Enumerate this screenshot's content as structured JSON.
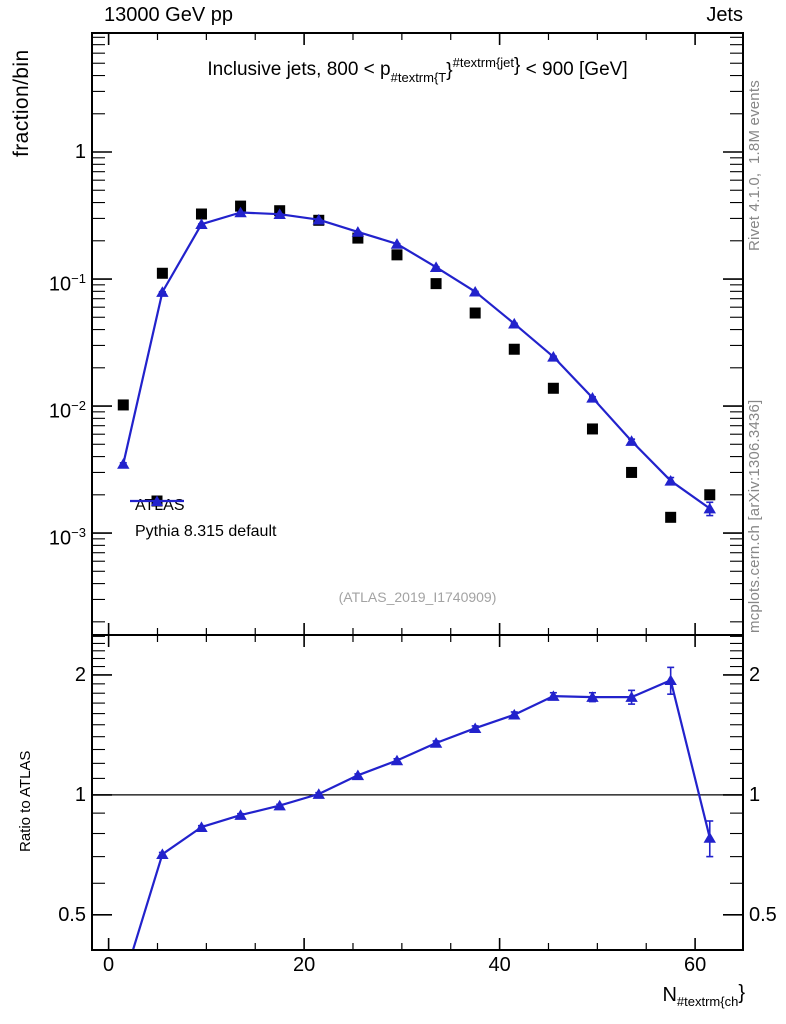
{
  "header": {
    "beam": "13000 GeV pp",
    "analysis": "Jets"
  },
  "main_title": {
    "pre": "Inclusive jets, 800 < p",
    "sub": "#textrm{T",
    "mid": "}",
    "sup": "#textrm{jet",
    "close": "}",
    "post": " < 900 [GeV]"
  },
  "watermark": "(ATLAS_2019_I1740909)",
  "credits": {
    "rivet": "Rivet 4.1.0,  1.8M events",
    "mcplots": "mcplots.cern.ch [arXiv:1306.3436]"
  },
  "legend": {
    "items": [
      {
        "label": "ATLAS",
        "marker": "square",
        "color": "#000000"
      },
      {
        "label": "Pythia 8.315 default",
        "marker": "triangle-line",
        "color": "#2222cc"
      }
    ]
  },
  "axes": {
    "main_y_label": "fraction/bin",
    "ratio_y_label": "Ratio to ATLAS",
    "x_label_pre": "N",
    "x_label_sub": "#textrm{ch",
    "x_label_close": "}",
    "main_y_ticks": [
      {
        "text": "1",
        "v": 1
      },
      {
        "base": "10",
        "exp": "−1",
        "v": 0.1
      },
      {
        "base": "10",
        "exp": "−2",
        "v": 0.01
      },
      {
        "base": "10",
        "exp": "−3",
        "v": 0.001
      }
    ],
    "ratio_y_ticks": [
      {
        "text": "2",
        "v": 2
      },
      {
        "text": "1",
        "v": 1
      },
      {
        "text": "0.5",
        "v": 0.5
      }
    ],
    "x_ticks": [
      {
        "text": "0",
        "v": 0
      },
      {
        "text": "20",
        "v": 20
      },
      {
        "text": "40",
        "v": 40
      },
      {
        "text": "60",
        "v": 60
      }
    ]
  },
  "colors": {
    "mc": "#2222cc",
    "data": "#000000",
    "frame": "#000000",
    "credits": "#878787",
    "watermark": "#a3a3a3"
  },
  "chart_data": [
    {
      "id": "main",
      "type": "line",
      "title": "Inclusive jets, 800 < pT^jet < 900 [GeV]",
      "xlabel": "N_ch",
      "ylabel": "fraction/bin",
      "yscale": "log",
      "xlim": [
        -1.7,
        64.9
      ],
      "ylim": [
        0.0001575,
        8.65
      ],
      "x": [
        1.5,
        5.5,
        9.5,
        13.5,
        17.5,
        21.5,
        25.5,
        29.5,
        33.5,
        37.5,
        41.5,
        45.5,
        49.5,
        53.5,
        57.5,
        61.5
      ],
      "series": [
        {
          "name": "ATLAS",
          "marker": "square",
          "line": false,
          "values": [
            0.0102,
            0.111,
            0.325,
            0.375,
            0.345,
            0.29,
            0.21,
            0.155,
            0.092,
            0.054,
            0.028,
            0.0138,
            0.0066,
            0.003,
            0.00133,
            0.002
          ]
        },
        {
          "name": "Pythia 8.315 default",
          "marker": "triangle",
          "line": true,
          "values": [
            0.0035,
            0.079,
            0.27,
            0.334,
            0.324,
            0.293,
            0.235,
            0.189,
            0.124,
            0.0794,
            0.0445,
            0.0244,
            0.0116,
            0.0053,
            0.00258,
            0.00156
          ],
          "yerr_rel": [
            0.02,
            0.006,
            0.004,
            0.003,
            0.003,
            0.003,
            0.004,
            0.004,
            0.005,
            0.006,
            0.008,
            0.012,
            0.02,
            0.035,
            0.06,
            0.12
          ]
        }
      ],
      "legend_position": "left-middle",
      "grid": false
    },
    {
      "id": "ratio",
      "type": "line",
      "ylabel": "Ratio to ATLAS",
      "yscale": "log",
      "xlim": [
        -1.7,
        64.9
      ],
      "ylim": [
        0.408,
        2.52
      ],
      "refline": 1,
      "x": [
        1.5,
        5.5,
        9.5,
        13.5,
        17.5,
        21.5,
        25.5,
        29.5,
        33.5,
        37.5,
        41.5,
        45.5,
        49.5,
        53.5,
        57.5,
        61.5
      ],
      "series": [
        {
          "name": "Pythia 8.315 default / ATLAS",
          "marker": "triangle",
          "line": true,
          "values": [
            0.34,
            0.71,
            0.83,
            0.89,
            0.94,
            1.005,
            1.12,
            1.22,
            1.35,
            1.47,
            1.59,
            1.77,
            1.76,
            1.76,
            1.94,
            0.78
          ],
          "yerr": [
            0.004,
            0.007,
            0.007,
            0.007,
            0.007,
            0.008,
            0.009,
            0.012,
            0.016,
            0.02,
            0.025,
            0.035,
            0.045,
            0.07,
            0.15,
            0.08
          ]
        }
      ],
      "grid": false
    }
  ]
}
